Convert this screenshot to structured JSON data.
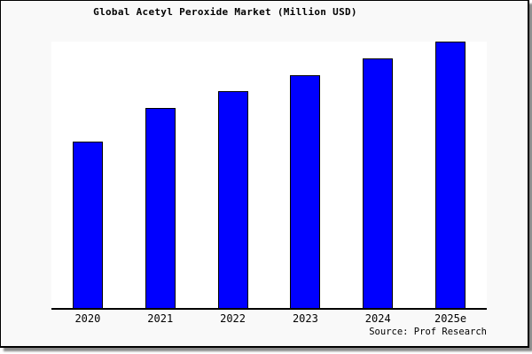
{
  "title": "Global Acetyl Peroxide Market (Million USD)",
  "source_note": "Source: Prof Research",
  "chart_data": {
    "type": "bar",
    "title": "Global Acetyl Peroxide Market (Million USD)",
    "categories": [
      "2020",
      "2021",
      "2022",
      "2023",
      "2024",
      "2025e"
    ],
    "values": [
      125,
      150,
      162.5,
      175,
      187.5,
      200
    ],
    "xlabel": "",
    "ylabel": "",
    "ylim": [
      0,
      200
    ],
    "y_axis_visible": false,
    "gridlines": false,
    "legend": false,
    "annotation": "Source: Prof Research"
  },
  "colors": {
    "bar_fill": "#0000ff",
    "bar_border": "#000000",
    "canvas_background": "#f9f9f9",
    "plot_background": "#ffffff",
    "axis_line": "#000000",
    "text": "#000000",
    "frame_border": "#000000",
    "drop_shadow": "#8a8a8a"
  }
}
